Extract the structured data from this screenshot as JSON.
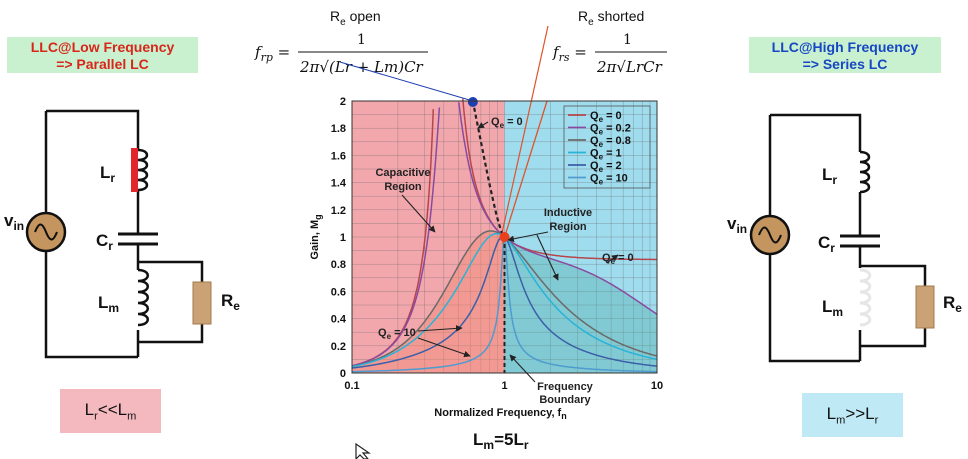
{
  "left_panel": {
    "title_line1": "LLC@Low Frequency",
    "title_line2": "=> Parallel LC",
    "relation_a": "L",
    "relation_a_sub": "r",
    "relation_op": "<<",
    "relation_b": "L",
    "relation_b_sub": "m",
    "labels": {
      "vin": "v",
      "vin_sub": "in",
      "lr": "L",
      "lr_sub": "r",
      "cr": "C",
      "cr_sub": "r",
      "lm": "L",
      "lm_sub": "m",
      "re": "R",
      "re_sub": "e"
    }
  },
  "right_panel": {
    "title_line1": "LLC@High Frequency",
    "title_line2": "=> Series LC",
    "relation_a": "L",
    "relation_a_sub": "m",
    "relation_op": ">>",
    "relation_b": "L",
    "relation_b_sub": "r",
    "labels": {
      "vin": "v",
      "vin_sub": "in",
      "lr": "L",
      "lr_sub": "r",
      "cr": "C",
      "cr_sub": "r",
      "lm": "L",
      "lm_sub": "m",
      "re": "R",
      "re_sub": "e"
    }
  },
  "center": {
    "re_open": "R",
    "re_open_sub": "e",
    "re_open_rest": " open",
    "re_shorted": "R",
    "re_shorted_sub": "e",
    "re_shorted_rest": " shorted",
    "frp_lhs": "f",
    "frp_lhs_sub": "rp",
    "frp_num": "1",
    "frp_den": "2π√((L",
    "frp_den_full": "2π√(Lr + Lm)Cr",
    "frs_lhs": "f",
    "frs_lhs_sub": "rs",
    "frs_num": "1",
    "frs_den_full": "2π√LrCr",
    "bottom_eq": "L",
    "bottom_eq_sub1": "m",
    "bottom_eq_mid": "=5L",
    "bottom_eq_sub2": "r"
  },
  "chart_data": {
    "type": "line",
    "xlabel": "Normalized Frequency, f",
    "xlabel_sub": "n",
    "ylabel": "Gain, M",
    "ylabel_sub": "g",
    "x_scale": "log",
    "xlim": [
      0.1,
      10
    ],
    "ylim": [
      0,
      2
    ],
    "x_ticks": [
      "0.1",
      "1",
      "10"
    ],
    "y_ticks": [
      "0",
      "0.2",
      "0.4",
      "0.6",
      "0.8",
      "1",
      "1.2",
      "1.4",
      "1.6",
      "1.8",
      "2"
    ],
    "grid": true,
    "legend_position": "top-right",
    "series": [
      {
        "name": "Q",
        "sub": "e",
        "suffix": " = 0",
        "color": "#b6464b",
        "q": 0
      },
      {
        "name": "Q",
        "sub": "e",
        "suffix": " = 0.2",
        "color": "#8a4aa0",
        "q": 0.2
      },
      {
        "name": "Q",
        "sub": "e",
        "suffix": " = 0.8",
        "color": "#6a6a6a",
        "q": 0.8
      },
      {
        "name": "Q",
        "sub": "e",
        "suffix": " = 1",
        "color": "#29b3d8",
        "q": 1
      },
      {
        "name": "Q",
        "sub": "e",
        "suffix": " = 2",
        "color": "#3b5fa8",
        "q": 2
      },
      {
        "name": "Q",
        "sub": "e",
        "suffix": " = 10",
        "color": "#4f9bd0",
        "q": 10
      }
    ],
    "annotations": {
      "capacitive_line1": "Capacitive",
      "capacitive_line2": "Region",
      "inductive_line1": "Inductive",
      "inductive_line2": "Region",
      "q0_top": "Q",
      "q0_top_sub": "e",
      "q0_top_rest": " = 0",
      "q0_right": "Q",
      "q0_right_sub": "e",
      "q0_right_rest": " = 0",
      "q10": "Q",
      "q10_sub": "e",
      "q10_rest": " = 10",
      "freq_boundary_line1": "Frequency",
      "freq_boundary_line2": "Boundary"
    },
    "colors": {
      "capacitive_bg": "#f2a7ad",
      "inductive_bg": "#9fdcee",
      "resonant_dot": "#e8401c",
      "frp_dot": "#1e3fb0",
      "boundary": "#222222"
    }
  }
}
